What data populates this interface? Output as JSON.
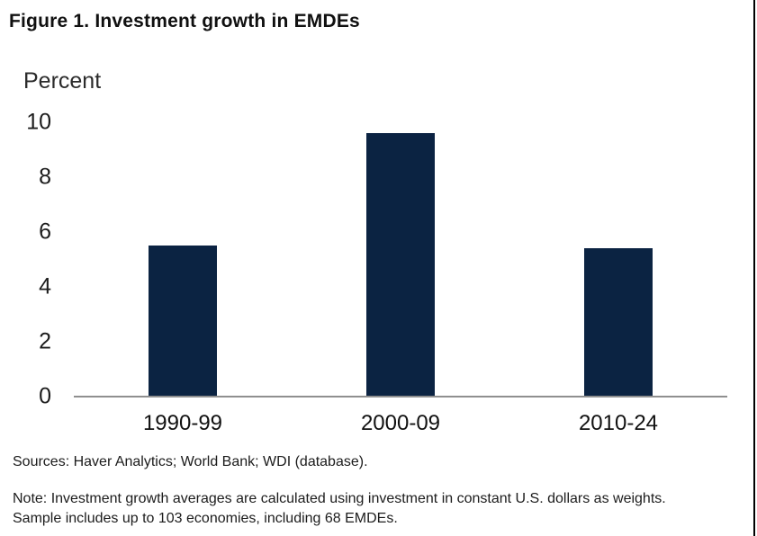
{
  "figure": {
    "title": "Figure 1. Investment growth in EMDEs",
    "y_axis_title": "Percent"
  },
  "chart_data": {
    "type": "bar",
    "title": "Figure 1. Investment growth in EMDEs",
    "ylabel": "Percent",
    "xlabel": "",
    "categories": [
      "1990-99",
      "2000-09",
      "2010-24"
    ],
    "values": [
      5.5,
      9.6,
      5.4
    ],
    "yticks": [
      0,
      2,
      4,
      6,
      8,
      10
    ],
    "ylim": [
      0,
      10
    ],
    "grid": false,
    "legend": false,
    "bar_color": "#0b2342",
    "axis_line_color": "#8f8f8f"
  },
  "footnotes": {
    "sources": "Sources: Haver Analytics; World Bank; WDI (database).",
    "note": "Note: Investment growth averages are calculated using investment in constant U.S. dollars as weights. Sample includes up to 103 economies, including 68 EMDEs."
  }
}
